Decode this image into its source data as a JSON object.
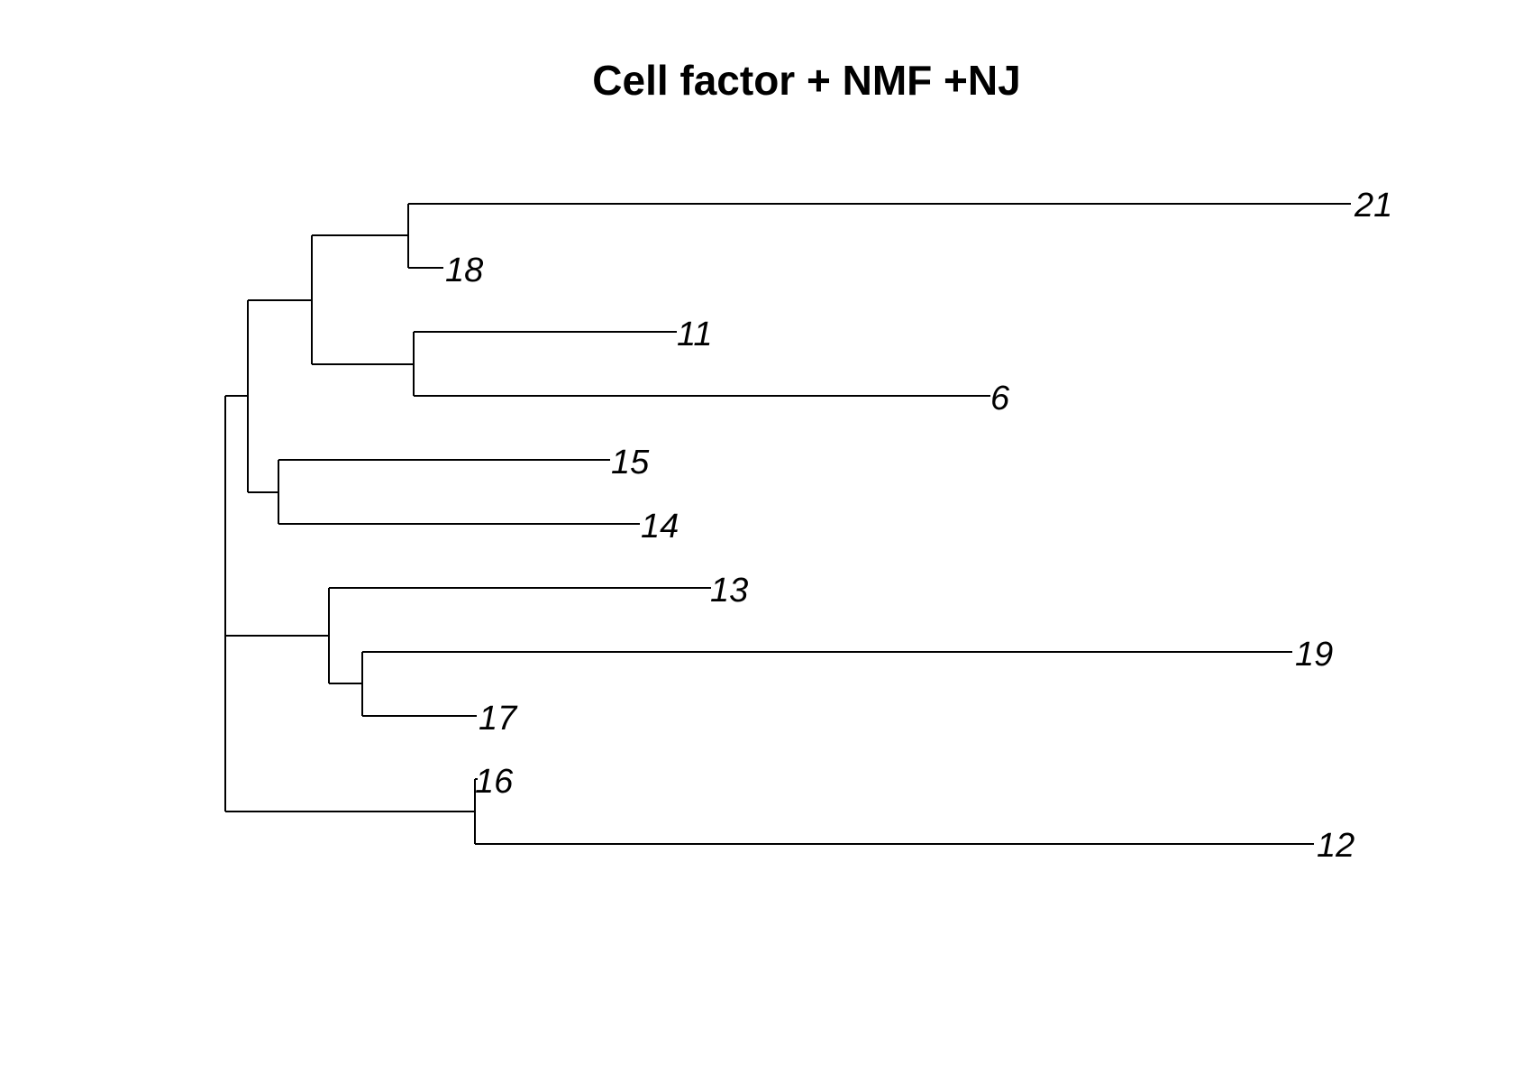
{
  "title": "Cell factor + NMF +NJ",
  "tree": {
    "layout": "rectangular phylogram",
    "line_color": "#000000",
    "tips": [
      "21",
      "18",
      "11",
      "6",
      "15",
      "14",
      "13",
      "19",
      "17",
      "16",
      "12"
    ],
    "newick": "((((21,18),(11,6)),(15,14)),(13,(19,17)),(16,12));"
  }
}
